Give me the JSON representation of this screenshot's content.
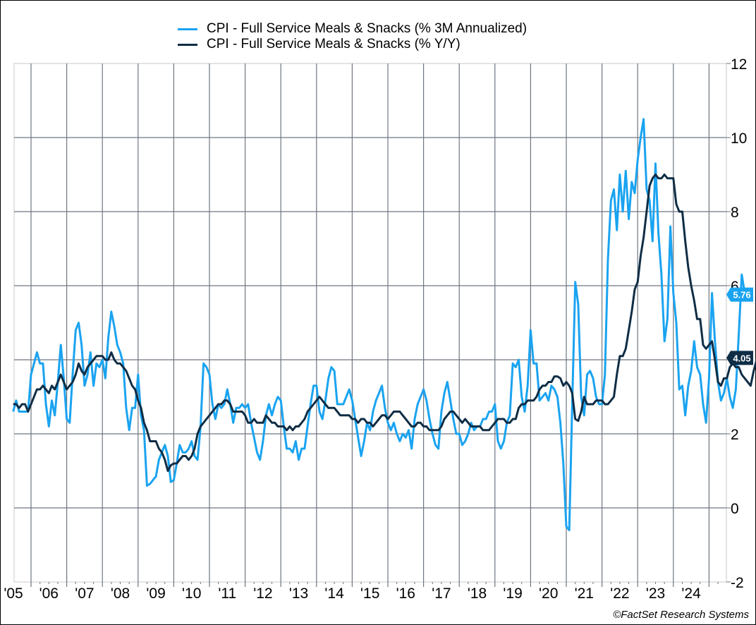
{
  "chart_data": {
    "type": "line",
    "title": "",
    "xlabel": "",
    "ylabel": "",
    "x_start": "2005-07",
    "x_frequency": "monthly",
    "x_tick_labels": [
      "'05",
      "'06",
      "'07",
      "'08",
      "'09",
      "'10",
      "'11",
      "'12",
      "'13",
      "'14",
      "'15",
      "'16",
      "'17",
      "'18",
      "'19",
      "'20",
      "'21",
      "'22",
      "'23",
      "'24"
    ],
    "ylim": [
      -2,
      12
    ],
    "y_ticks": [
      -2,
      0,
      2,
      4,
      6,
      8,
      10,
      12
    ],
    "y_axis_side": "right",
    "grid": true,
    "legend_position": "top-center",
    "series": [
      {
        "name": "CPI - Full Service Meals & Snacks (% 3M Annualized)",
        "color": "#1aa3f0",
        "last_value_label": "5.76",
        "values": [
          2.6,
          2.9,
          2.6,
          2.6,
          2.6,
          2.6,
          3.6,
          3.9,
          4.2,
          3.9,
          3.9,
          2.8,
          2.2,
          2.9,
          2.5,
          3.4,
          4.4,
          3.5,
          2.4,
          2.3,
          3.6,
          4.8,
          5.0,
          4.4,
          3.3,
          3.6,
          4.2,
          3.3,
          3.9,
          3.8,
          4.0,
          3.5,
          4.6,
          5.3,
          4.9,
          4.4,
          4.2,
          3.9,
          2.7,
          2.1,
          2.7,
          2.7,
          3.6,
          2.5,
          2.1,
          0.6,
          0.65,
          0.75,
          0.85,
          1.3,
          1.5,
          1.7,
          1.4,
          0.7,
          0.75,
          1.2,
          1.7,
          1.5,
          1.5,
          1.6,
          1.8,
          1.4,
          1.3,
          2.2,
          3.9,
          3.8,
          3.6,
          2.8,
          2.4,
          2.8,
          2.7,
          2.8,
          3.2,
          2.8,
          2.3,
          2.7,
          2.7,
          2.8,
          2.7,
          2.8,
          2.3,
          1.9,
          1.5,
          1.3,
          1.8,
          2.5,
          2.8,
          2.5,
          2.8,
          3.0,
          2.9,
          2.2,
          1.6,
          1.6,
          1.5,
          1.8,
          1.3,
          1.6,
          1.6,
          2.2,
          2.8,
          3.3,
          3.3,
          2.6,
          2.4,
          2.9,
          3.5,
          3.8,
          3.7,
          2.8,
          2.8,
          2.8,
          3.0,
          3.2,
          2.9,
          2.4,
          1.9,
          1.4,
          1.8,
          2.3,
          2.1,
          2.6,
          2.9,
          3.1,
          3.3,
          2.7,
          2.3,
          2.1,
          2.3,
          2.0,
          1.8,
          2.0,
          1.9,
          2.1,
          1.6,
          2.4,
          2.8,
          3.0,
          3.2,
          2.9,
          2.4,
          2.0,
          1.7,
          1.6,
          2.6,
          3.1,
          3.4,
          2.9,
          2.4,
          2.0,
          2.0,
          1.7,
          1.8,
          2.0,
          2.3,
          2.1,
          2.2,
          2.2,
          2.4,
          2.4,
          2.6,
          2.6,
          2.8,
          1.8,
          1.6,
          1.8,
          2.3,
          2.5,
          3.9,
          3.8,
          4.0,
          3.0,
          2.6,
          3.3,
          4.8,
          3.9,
          3.9,
          2.9,
          3.0,
          3.1,
          2.9,
          3.3,
          3.2,
          3.0,
          2.3,
          1.2,
          -0.5,
          -0.6,
          2.8,
          6.1,
          5.5,
          3.0,
          2.5,
          3.6,
          3.7,
          3.5,
          3.0,
          2.8,
          2.8,
          3.6,
          6.7,
          8.3,
          8.6,
          7.5,
          9.0,
          8.0,
          9.1,
          7.8,
          8.8,
          8.5,
          9.4,
          10.0,
          10.5,
          8.6,
          8.3,
          7.2,
          9.3,
          7.4,
          6.3,
          4.5,
          5.1,
          7.6,
          5.8,
          5.0,
          3.2,
          3.3,
          2.5,
          3.3,
          3.7,
          4.5,
          3.8,
          3.6,
          2.8,
          2.3,
          3.5,
          5.8,
          4.5,
          3.4,
          2.9,
          3.1,
          3.5,
          3.0,
          2.7,
          3.2,
          4.7,
          6.3,
          5.8,
          5.76
        ]
      },
      {
        "name": "CPI - Full Service Meals & Snacks (% Y/Y)",
        "color": "#0f2d45",
        "last_value_label": "4.05",
        "values": [
          2.8,
          2.8,
          2.7,
          2.8,
          2.8,
          2.6,
          2.8,
          3.0,
          3.2,
          3.2,
          3.3,
          3.2,
          3.1,
          3.3,
          3.2,
          3.4,
          3.6,
          3.4,
          3.2,
          3.3,
          3.4,
          3.6,
          3.9,
          3.7,
          3.6,
          3.8,
          3.9,
          4.0,
          4.1,
          4.1,
          4.1,
          4.0,
          4.0,
          4.2,
          4.0,
          3.9,
          3.9,
          3.8,
          3.7,
          3.5,
          3.3,
          3.2,
          2.9,
          2.7,
          2.3,
          2.1,
          1.8,
          1.8,
          1.8,
          1.6,
          1.5,
          1.3,
          1.0,
          1.15,
          1.2,
          1.2,
          1.3,
          1.4,
          1.4,
          1.3,
          1.4,
          1.6,
          2.0,
          2.2,
          2.3,
          2.4,
          2.5,
          2.6,
          2.7,
          2.8,
          2.8,
          2.9,
          2.9,
          2.8,
          2.6,
          2.6,
          2.6,
          2.6,
          2.5,
          2.3,
          2.3,
          2.4,
          2.3,
          2.3,
          2.3,
          2.5,
          2.4,
          2.3,
          2.3,
          2.2,
          2.2,
          2.2,
          2.1,
          2.2,
          2.1,
          2.2,
          2.2,
          2.3,
          2.4,
          2.6,
          2.7,
          2.8,
          2.9,
          3.0,
          2.9,
          2.8,
          2.7,
          2.7,
          2.7,
          2.6,
          2.5,
          2.5,
          2.5,
          2.5,
          2.4,
          2.4,
          2.3,
          2.4,
          2.4,
          2.3,
          2.3,
          2.2,
          2.3,
          2.4,
          2.5,
          2.5,
          2.4,
          2.5,
          2.6,
          2.6,
          2.6,
          2.5,
          2.4,
          2.3,
          2.2,
          2.2,
          2.3,
          2.3,
          2.2,
          2.2,
          2.1,
          2.1,
          2.1,
          2.1,
          2.2,
          2.4,
          2.5,
          2.6,
          2.6,
          2.5,
          2.4,
          2.3,
          2.4,
          2.3,
          2.2,
          2.2,
          2.2,
          2.2,
          2.1,
          2.1,
          2.1,
          2.2,
          2.3,
          2.4,
          2.4,
          2.4,
          2.3,
          2.3,
          2.4,
          2.4,
          2.7,
          2.8,
          2.8,
          2.9,
          2.9,
          2.9,
          3.0,
          3.2,
          3.3,
          3.3,
          3.4,
          3.4,
          3.55,
          3.55,
          3.5,
          3.3,
          3.4,
          3.3,
          3.1,
          2.4,
          2.35,
          2.6,
          3.0,
          2.8,
          2.8,
          2.8,
          2.9,
          2.9,
          2.9,
          2.8,
          2.8,
          2.9,
          3.0,
          3.6,
          4.1,
          4.1,
          4.3,
          4.8,
          5.3,
          5.9,
          6.1,
          6.8,
          7.3,
          8.0,
          8.7,
          8.9,
          9.0,
          8.9,
          8.9,
          9.0,
          8.9,
          8.9,
          8.9,
          8.2,
          8.0,
          8.0,
          7.2,
          6.5,
          6.0,
          5.6,
          5.1,
          5.1,
          4.4,
          4.3,
          4.4,
          4.5,
          4.0,
          3.4,
          3.3,
          3.5,
          3.5,
          3.8,
          3.9,
          3.8,
          3.8,
          3.6,
          3.5,
          3.4,
          3.3,
          3.7,
          4.0,
          4.3,
          4.2,
          4.05
        ]
      }
    ]
  },
  "legend": {
    "items": [
      {
        "label": "CPI - Full Service Meals & Snacks (% 3M Annualized)",
        "color": "#1aa3f0"
      },
      {
        "label": "CPI - Full Service Meals & Snacks (% Y/Y)",
        "color": "#0f2d45"
      }
    ]
  },
  "credit": "©FactSet Research Systems"
}
